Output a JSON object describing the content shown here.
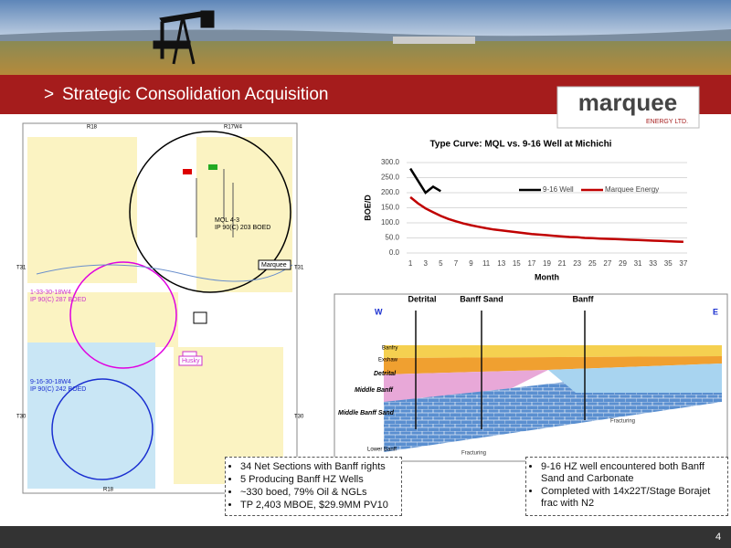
{
  "header": {
    "marker": ">",
    "title": "Strategic Consolidation Acquisition"
  },
  "logo": {
    "name": "marquee",
    "sub": "ENERGY LTD."
  },
  "map": {
    "labels": [
      "R18",
      "R17W4",
      "T31",
      "T31",
      "Marquee",
      "Husky",
      "T30",
      "T30",
      "R18"
    ],
    "wells": [
      {
        "lines": [
          "MQL 4-3",
          "IP 90(C) 203 BOED"
        ]
      },
      {
        "lines": [
          "1-33-30-18W4",
          "IP 90(C) 287 BOED"
        ]
      },
      {
        "lines": [
          "9-16-30-18W4",
          "IP 90(C) 242 BOED"
        ]
      }
    ]
  },
  "chart_data": {
    "type": "line",
    "title": "Type Curve: MQL vs. 9-16 Well at Michichi",
    "x_label": "Month",
    "y_label": "BOE/D",
    "categories": [
      "1",
      null,
      "3",
      null,
      "5",
      null,
      "7",
      null,
      "9",
      null,
      "11",
      null,
      "13",
      null,
      "15",
      null,
      "17",
      null,
      "19",
      null,
      "21",
      null,
      "23",
      null,
      "25",
      null,
      "27",
      null,
      "29",
      null,
      "31",
      null,
      "33",
      null,
      "35",
      null,
      "37"
    ],
    "series": [
      {
        "name": "9-16 Well",
        "color": "#000000",
        "values": [
          280,
          240,
          200,
          220,
          205,
          null,
          null,
          null,
          null,
          null,
          null,
          null,
          null,
          null,
          null,
          null,
          null,
          null,
          null,
          null,
          null,
          null,
          null,
          null,
          null,
          null,
          null,
          null,
          null,
          null,
          null,
          null,
          null,
          null,
          null,
          null,
          null
        ]
      },
      {
        "name": "Marquee Energy",
        "color": "#c00000",
        "values": [
          185,
          165,
          148,
          135,
          123,
          113,
          105,
          98,
          92,
          87,
          82,
          78,
          75,
          72,
          69,
          66,
          63,
          61,
          59,
          57,
          55,
          53,
          52,
          50,
          49,
          48,
          47,
          46,
          45,
          44,
          43,
          42,
          41,
          40,
          39,
          38,
          37
        ]
      }
    ],
    "ylim": [
      0,
      300
    ],
    "yticks": [
      {
        "value": 0,
        "label": "0.0"
      },
      {
        "value": 50,
        "label": "50.0"
      },
      {
        "value": 100,
        "label": "100.0"
      },
      {
        "value": 150,
        "label": "150.0"
      },
      {
        "value": 200,
        "label": "200.0"
      },
      {
        "value": 250,
        "label": "250.0"
      },
      {
        "value": 300,
        "label": "300.0"
      }
    ],
    "grid": true
  },
  "diagram": {
    "top_labels": [
      "Detrital",
      "Banff Sand",
      "Banff"
    ],
    "sides": [
      "W",
      "E"
    ],
    "layers": [
      "Banfry",
      "Exshaw",
      "Detrital",
      "Middle Banff",
      "Middle Banff Sand",
      "Lower Banff"
    ],
    "notes": [
      "Fracturing",
      "Fracturing"
    ]
  },
  "bullets_left": [
    "34 Net Sections with Banff rights",
    "5 Producing Banff HZ Wells",
    "~330 boed, 79% Oil & NGLs",
    "TP 2,403 MBOE, $29.9MM PV10"
  ],
  "bullets_right": [
    "9-16 HZ well encountered both Banff Sand and Carbonate",
    "Completed with 14x22T/Stage Borajet frac with N2"
  ],
  "page_number": "4"
}
